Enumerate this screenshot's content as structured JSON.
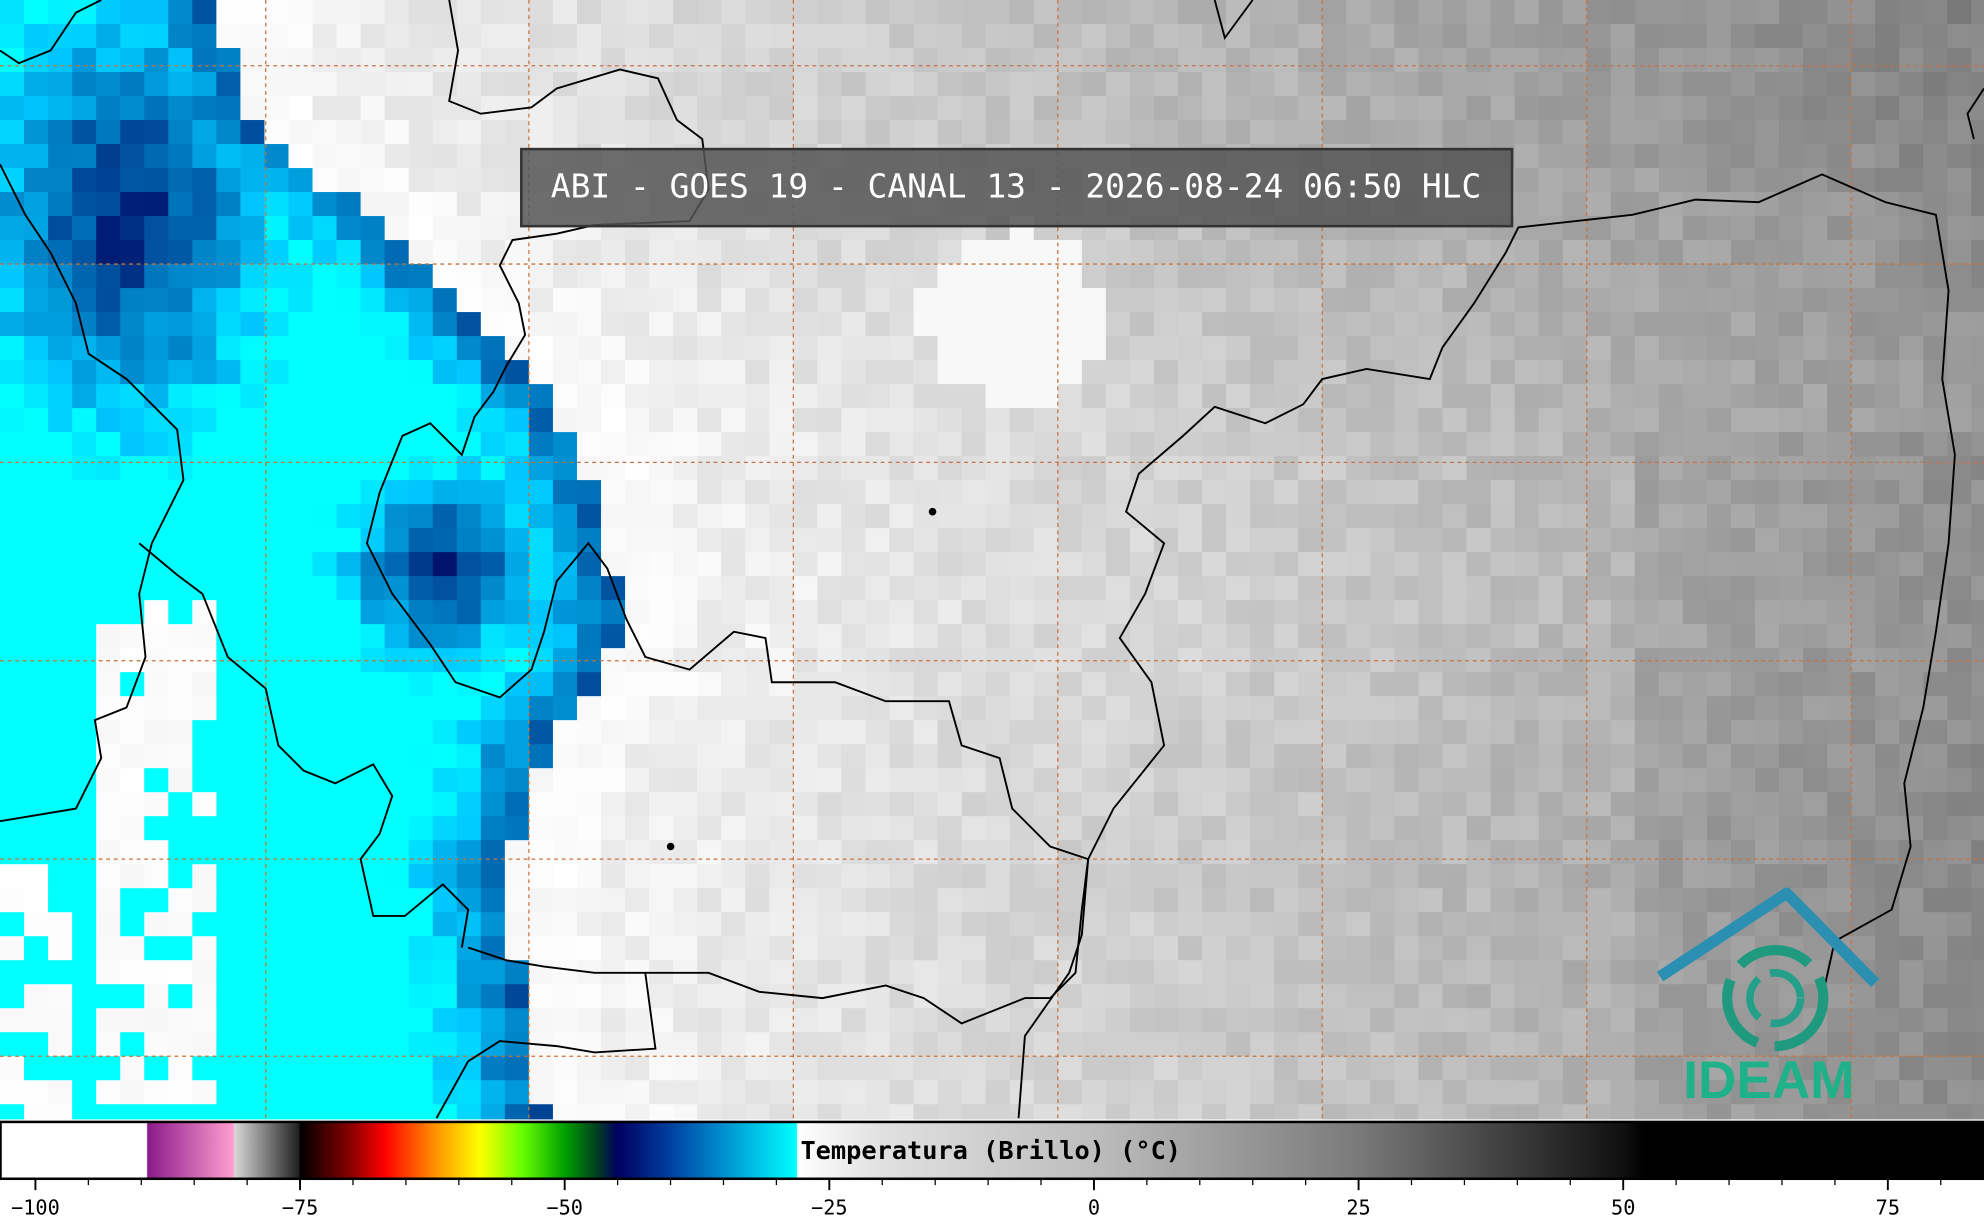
{
  "title": "ABI - GOES 19 - CANAL 13 - 2026-08-24 06:50 HLC",
  "logo": {
    "text": "IDEAM"
  },
  "colorbar": {
    "label": "Temperatura (Brillo) (°C)",
    "range": [
      -103.3,
      87.3
    ],
    "ticks": [
      {
        "value": -100,
        "label": "−100"
      },
      {
        "value": -75,
        "label": "−75"
      },
      {
        "value": -50,
        "label": "−50"
      },
      {
        "value": -25,
        "label": "−25"
      },
      0,
      25,
      50,
      75
    ],
    "minor_tick_step": 5,
    "colormap": [
      [
        -103.3,
        "#ffffff"
      ],
      [
        -89.5,
        "#ffffff"
      ],
      [
        -89.4,
        "#8b1a8b"
      ],
      [
        -81.3,
        "#ff9fd0"
      ],
      [
        -81.2,
        "#d8d8d8"
      ],
      [
        -75.1,
        "#202020"
      ],
      [
        -75,
        "#000000"
      ],
      [
        -70,
        "#900000"
      ],
      [
        -67,
        "#ff0000"
      ],
      [
        -62,
        "#ff9900"
      ],
      [
        -58,
        "#ffff00"
      ],
      [
        -54,
        "#66ff00"
      ],
      [
        -50,
        "#00a000"
      ],
      [
        -47,
        "#004020"
      ],
      [
        -45,
        "#000060"
      ],
      [
        -40,
        "#0040a0"
      ],
      [
        -35,
        "#0090d0"
      ],
      [
        -28.1,
        "#00ffff"
      ],
      [
        -28,
        "#ffffff"
      ],
      [
        -20,
        "#e0e0e0"
      ],
      [
        0,
        "#bdbdbd"
      ],
      [
        25,
        "#7a7a7a"
      ],
      [
        50,
        "#101010"
      ],
      [
        52,
        "#000000"
      ],
      [
        87.3,
        "#000000"
      ]
    ]
  }
}
